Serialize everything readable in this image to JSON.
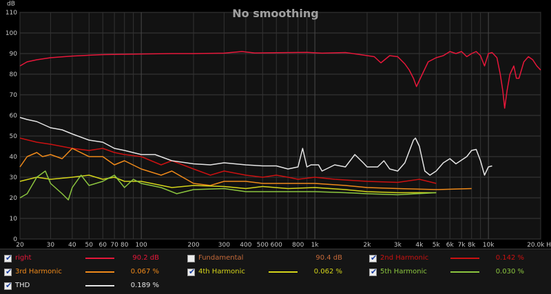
{
  "chart_data": {
    "type": "line",
    "title": "No smoothing",
    "xlabel": "Hz",
    "ylabel": "dB",
    "x_scale": "log",
    "xlim": [
      20,
      20000
    ],
    "ylim": [
      0,
      110
    ],
    "grid": true,
    "y_ticks": [
      0,
      10,
      20,
      30,
      40,
      50,
      60,
      70,
      80,
      90,
      100,
      110
    ],
    "x_ticks": [
      {
        "v": 20,
        "label": "20"
      },
      {
        "v": 30,
        "label": "30"
      },
      {
        "v": 40,
        "label": "40"
      },
      {
        "v": 50,
        "label": "50"
      },
      {
        "v": 60,
        "label": "60"
      },
      {
        "v": 70,
        "label": "70"
      },
      {
        "v": 80,
        "label": "80"
      },
      {
        "v": 100,
        "label": "100"
      },
      {
        "v": 200,
        "label": "200"
      },
      {
        "v": 300,
        "label": "300"
      },
      {
        "v": 400,
        "label": "400"
      },
      {
        "v": 500,
        "label": "500"
      },
      {
        "v": 600,
        "label": "600"
      },
      {
        "v": 800,
        "label": "800"
      },
      {
        "v": 1000,
        "label": "1k"
      },
      {
        "v": 2000,
        "label": "2k"
      },
      {
        "v": 3000,
        "label": "3k"
      },
      {
        "v": 4000,
        "label": "4k"
      },
      {
        "v": 5000,
        "label": "5k"
      },
      {
        "v": 6000,
        "label": "6k"
      },
      {
        "v": 7000,
        "label": "7k"
      },
      {
        "v": 8000,
        "label": "8k"
      },
      {
        "v": 10000,
        "label": "10k"
      },
      {
        "v": 20000,
        "label": "20.0k Hz"
      }
    ],
    "series": [
      {
        "name": "right",
        "color": "#e8173a",
        "points": [
          [
            20,
            84
          ],
          [
            22,
            86
          ],
          [
            25,
            87
          ],
          [
            30,
            88
          ],
          [
            40,
            88.8
          ],
          [
            60,
            89.5
          ],
          [
            100,
            89.8
          ],
          [
            150,
            90
          ],
          [
            200,
            90
          ],
          [
            300,
            90.2
          ],
          [
            380,
            91
          ],
          [
            450,
            90.3
          ],
          [
            600,
            90.4
          ],
          [
            900,
            90.6
          ],
          [
            1100,
            90.2
          ],
          [
            1500,
            90.5
          ],
          [
            1900,
            89.3
          ],
          [
            2200,
            88.5
          ],
          [
            2400,
            85.5
          ],
          [
            2700,
            89
          ],
          [
            3000,
            88.5
          ],
          [
            3300,
            85
          ],
          [
            3500,
            82
          ],
          [
            3700,
            78
          ],
          [
            3850,
            74
          ],
          [
            4000,
            77
          ],
          [
            4500,
            86
          ],
          [
            5000,
            88
          ],
          [
            5500,
            89
          ],
          [
            6000,
            91
          ],
          [
            6500,
            90
          ],
          [
            7000,
            91
          ],
          [
            7500,
            88.5
          ],
          [
            8000,
            90
          ],
          [
            8500,
            91
          ],
          [
            9000,
            89
          ],
          [
            9500,
            84
          ],
          [
            10000,
            90
          ],
          [
            10500,
            90.5
          ],
          [
            11200,
            88
          ],
          [
            11700,
            80
          ],
          [
            12100,
            72
          ],
          [
            12400,
            63.5
          ],
          [
            12800,
            72
          ],
          [
            13300,
            80
          ],
          [
            14000,
            84
          ],
          [
            14500,
            78
          ],
          [
            15000,
            78
          ],
          [
            16000,
            86
          ],
          [
            17000,
            88.5
          ],
          [
            18000,
            87
          ],
          [
            19000,
            84
          ],
          [
            20000,
            82
          ]
        ]
      },
      {
        "name": "Fundamental",
        "color": "#c66a3a",
        "visible": false,
        "points": []
      },
      {
        "name": "2nd Harmonic",
        "color": "#cc1111",
        "points": [
          [
            20,
            49
          ],
          [
            25,
            47
          ],
          [
            30,
            46
          ],
          [
            40,
            44
          ],
          [
            50,
            43
          ],
          [
            60,
            44
          ],
          [
            70,
            42
          ],
          [
            80,
            41
          ],
          [
            100,
            40
          ],
          [
            130,
            36
          ],
          [
            150,
            38
          ],
          [
            200,
            34
          ],
          [
            250,
            31
          ],
          [
            300,
            33
          ],
          [
            400,
            31
          ],
          [
            500,
            30
          ],
          [
            600,
            31
          ],
          [
            700,
            30
          ],
          [
            800,
            29
          ],
          [
            1000,
            30
          ],
          [
            1300,
            29
          ],
          [
            1600,
            28.5
          ],
          [
            2000,
            28
          ],
          [
            3000,
            27.5
          ],
          [
            4000,
            29
          ],
          [
            5000,
            27
          ]
        ]
      },
      {
        "name": "3rd Harmonic",
        "color": "#f08a1a",
        "points": [
          [
            20,
            35
          ],
          [
            22,
            40
          ],
          [
            25,
            42
          ],
          [
            27,
            40
          ],
          [
            30,
            41
          ],
          [
            35,
            39
          ],
          [
            40,
            44
          ],
          [
            50,
            40
          ],
          [
            60,
            40
          ],
          [
            70,
            36
          ],
          [
            80,
            38
          ],
          [
            100,
            34
          ],
          [
            130,
            31
          ],
          [
            150,
            33
          ],
          [
            200,
            27
          ],
          [
            250,
            26
          ],
          [
            300,
            28
          ],
          [
            400,
            28
          ],
          [
            500,
            27
          ],
          [
            700,
            27
          ],
          [
            1000,
            27
          ],
          [
            1500,
            26
          ],
          [
            2000,
            25
          ],
          [
            3000,
            24.5
          ],
          [
            5000,
            24
          ],
          [
            8000,
            24.5
          ]
        ]
      },
      {
        "name": "4th Harmonic",
        "color": "#d5d51a",
        "points": [
          [
            20,
            28
          ],
          [
            25,
            30
          ],
          [
            30,
            29
          ],
          [
            40,
            30
          ],
          [
            50,
            31
          ],
          [
            60,
            29
          ],
          [
            70,
            30
          ],
          [
            80,
            28
          ],
          [
            100,
            28
          ],
          [
            150,
            25
          ],
          [
            200,
            26
          ],
          [
            300,
            25.5
          ],
          [
            400,
            24.5
          ],
          [
            500,
            25.5
          ],
          [
            700,
            24.5
          ],
          [
            1000,
            25
          ],
          [
            1500,
            24
          ],
          [
            2000,
            23
          ],
          [
            3000,
            22.5
          ],
          [
            5000,
            22.5
          ]
        ]
      },
      {
        "name": "5th Harmonic",
        "color": "#8cc63f",
        "points": [
          [
            20,
            20
          ],
          [
            22,
            22
          ],
          [
            25,
            30
          ],
          [
            28,
            33
          ],
          [
            30,
            27
          ],
          [
            35,
            22
          ],
          [
            38,
            19
          ],
          [
            40,
            25
          ],
          [
            45,
            31
          ],
          [
            50,
            26
          ],
          [
            60,
            28
          ],
          [
            70,
            31
          ],
          [
            80,
            25
          ],
          [
            90,
            29
          ],
          [
            100,
            27
          ],
          [
            130,
            25
          ],
          [
            160,
            22
          ],
          [
            200,
            24
          ],
          [
            300,
            24.5
          ],
          [
            400,
            23
          ],
          [
            600,
            23
          ],
          [
            1000,
            23
          ],
          [
            1500,
            22.5
          ],
          [
            2000,
            22
          ],
          [
            3000,
            21.5
          ],
          [
            5000,
            22.5
          ]
        ]
      },
      {
        "name": "THD",
        "color": "#e6e6e6",
        "points": [
          [
            20,
            59
          ],
          [
            22,
            58
          ],
          [
            25,
            57
          ],
          [
            30,
            54
          ],
          [
            35,
            53
          ],
          [
            40,
            51
          ],
          [
            50,
            48
          ],
          [
            60,
            47
          ],
          [
            70,
            44
          ],
          [
            80,
            43
          ],
          [
            100,
            41
          ],
          [
            120,
            41
          ],
          [
            150,
            38
          ],
          [
            200,
            36.5
          ],
          [
            250,
            36
          ],
          [
            300,
            37
          ],
          [
            400,
            36
          ],
          [
            500,
            35.5
          ],
          [
            600,
            35.5
          ],
          [
            700,
            34
          ],
          [
            800,
            35
          ],
          [
            850,
            44
          ],
          [
            900,
            35
          ],
          [
            950,
            36
          ],
          [
            1050,
            36
          ],
          [
            1100,
            33
          ],
          [
            1300,
            36
          ],
          [
            1500,
            35
          ],
          [
            1700,
            41
          ],
          [
            1900,
            37
          ],
          [
            2000,
            35
          ],
          [
            2300,
            35
          ],
          [
            2500,
            38
          ],
          [
            2700,
            34
          ],
          [
            3000,
            33
          ],
          [
            3300,
            37
          ],
          [
            3700,
            48
          ],
          [
            3800,
            49
          ],
          [
            4000,
            45
          ],
          [
            4300,
            33
          ],
          [
            4600,
            31
          ],
          [
            5000,
            33
          ],
          [
            5500,
            37
          ],
          [
            6000,
            39
          ],
          [
            6500,
            36.5
          ],
          [
            7500,
            40
          ],
          [
            8000,
            43
          ],
          [
            8500,
            43.5
          ],
          [
            9000,
            38
          ],
          [
            9500,
            31
          ],
          [
            10000,
            35
          ],
          [
            10500,
            35.5
          ]
        ]
      }
    ]
  },
  "legend": [
    {
      "id": "right",
      "label": "right",
      "checked": true,
      "color": "#e8173a",
      "value": "90.2 dB"
    },
    {
      "id": "fundamental",
      "label": "Fundamental",
      "checked": false,
      "color": "#c66a3a",
      "value": "90.4 dB"
    },
    {
      "id": "2nd",
      "label": "2nd Harmonic",
      "checked": true,
      "color": "#cc1111",
      "value": "0.142 %"
    },
    {
      "id": "3rd",
      "label": "3rd Harmonic",
      "checked": true,
      "color": "#f08a1a",
      "value": "0.067 %"
    },
    {
      "id": "4th",
      "label": "4th Harmonic",
      "checked": true,
      "color": "#d5d51a",
      "value": "0.062 %"
    },
    {
      "id": "5th",
      "label": "5th Harmonic",
      "checked": true,
      "color": "#8cc63f",
      "value": "0.030 %"
    },
    {
      "id": "thd",
      "label": "THD",
      "checked": true,
      "color": "#e6e6e6",
      "value": "0.189 %"
    }
  ]
}
